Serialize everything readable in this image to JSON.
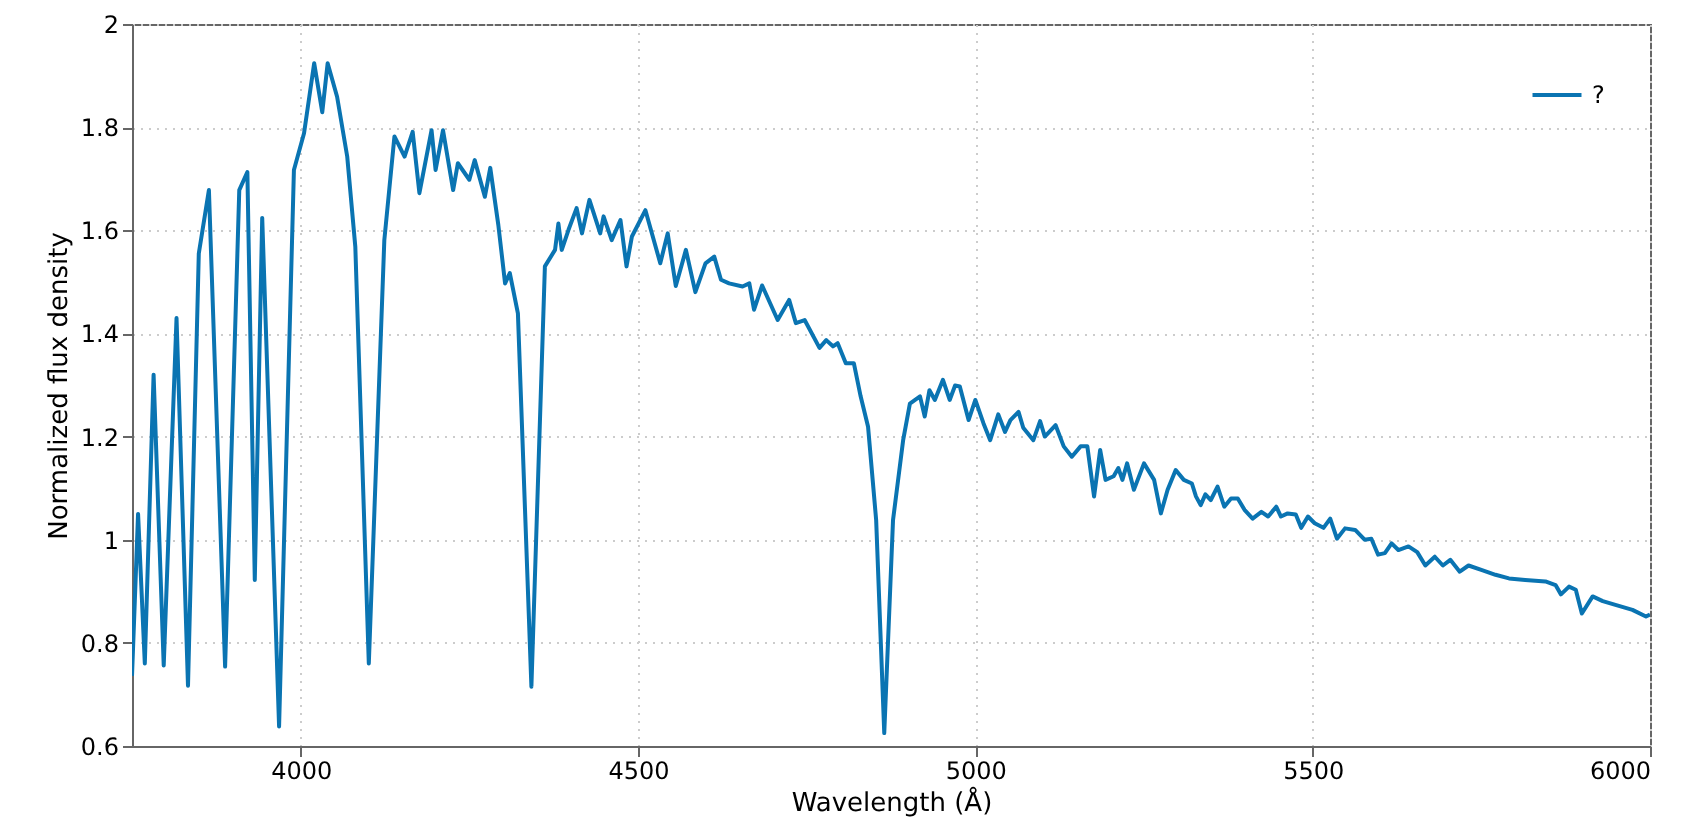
{
  "chart_data": {
    "type": "line",
    "xlabel": "Wavelength (Å)",
    "ylabel": "Normalized flux density",
    "xlim": [
      3750,
      6000
    ],
    "ylim": [
      0.6,
      2
    ],
    "xticks": [
      4000,
      4500,
      5000,
      5500,
      6000
    ],
    "yticks": [
      0.6,
      0.8,
      1,
      1.2,
      1.4,
      1.6,
      1.8,
      2
    ],
    "grid": true,
    "legend": "top right",
    "marker": "none",
    "line_style": "solid",
    "x": [
      3750,
      3759,
      3769,
      3782,
      3797,
      3816,
      3833,
      3849,
      3864,
      3888,
      3909,
      3921,
      3932,
      3943,
      3968,
      3990,
      4005,
      4020,
      4032,
      4040,
      4054,
      4069,
      4081,
      4101,
      4124,
      4139,
      4154,
      4166,
      4176,
      4194,
      4200,
      4211,
      4226,
      4233,
      4250,
      4258,
      4273,
      4281,
      4293,
      4303,
      4310,
      4322,
      4342,
      4362,
      4377,
      4382,
      4387,
      4397,
      4409,
      4417,
      4428,
      4444,
      4449,
      4461,
      4474,
      4483,
      4491,
      4511,
      4533,
      4544,
      4556,
      4571,
      4585,
      4600,
      4613,
      4623,
      4635,
      4655,
      4665,
      4672,
      4684,
      4707,
      4724,
      4734,
      4747,
      4769,
      4779,
      4789,
      4796,
      4808,
      4820,
      4830,
      4841,
      4853,
      4865,
      4878,
      4893,
      4903,
      4918,
      4925,
      4932,
      4940,
      4952,
      4962,
      4970,
      4977,
      4990,
      5000,
      5012,
      5022,
      5034,
      5044,
      5052,
      5064,
      5071,
      5086,
      5096,
      5103,
      5119,
      5131,
      5143,
      5156,
      5166,
      5176,
      5185,
      5193,
      5205,
      5212,
      5218,
      5225,
      5235,
      5250,
      5265,
      5275,
      5285,
      5297,
      5309,
      5321,
      5327,
      5334,
      5341,
      5349,
      5359,
      5369,
      5379,
      5389,
      5399,
      5411,
      5424,
      5434,
      5446,
      5453,
      5463,
      5475,
      5483,
      5493,
      5503,
      5516,
      5526,
      5536,
      5548,
      5563,
      5577,
      5587,
      5597,
      5607,
      5617,
      5627,
      5642,
      5655,
      5667,
      5681,
      5693,
      5704,
      5718,
      5731,
      5751,
      5771,
      5791,
      5815,
      5845,
      5860,
      5868,
      5880,
      5890,
      5899,
      5915,
      5930,
      5950,
      5974,
      5994,
      6000
    ],
    "series": [
      {
        "name": "?",
        "color": "#0a74b2",
        "values": [
          0.736,
          1.05,
          0.76,
          1.32,
          0.756,
          1.43,
          0.717,
          1.555,
          1.678,
          0.754,
          1.678,
          1.713,
          0.922,
          1.624,
          0.638,
          1.717,
          1.788,
          1.924,
          1.829,
          1.924,
          1.859,
          1.743,
          1.568,
          0.76,
          1.581,
          1.782,
          1.743,
          1.791,
          1.672,
          1.794,
          1.717,
          1.794,
          1.678,
          1.73,
          1.698,
          1.736,
          1.665,
          1.721,
          1.61,
          1.497,
          1.517,
          1.439,
          0.715,
          1.53,
          1.562,
          1.613,
          1.562,
          1.601,
          1.643,
          1.594,
          1.659,
          1.594,
          1.627,
          1.581,
          1.62,
          1.53,
          1.588,
          1.639,
          1.536,
          1.594,
          1.492,
          1.562,
          1.48,
          1.536,
          1.549,
          1.504,
          1.497,
          1.491,
          1.497,
          1.446,
          1.493,
          1.426,
          1.465,
          1.42,
          1.426,
          1.372,
          1.387,
          1.375,
          1.381,
          1.342,
          1.342,
          1.278,
          1.219,
          1.038,
          0.625,
          1.038,
          1.193,
          1.264,
          1.278,
          1.239,
          1.29,
          1.271,
          1.31,
          1.271,
          1.299,
          1.297,
          1.232,
          1.271,
          1.226,
          1.193,
          1.243,
          1.209,
          1.232,
          1.248,
          1.217,
          1.193,
          1.23,
          1.2,
          1.222,
          1.181,
          1.161,
          1.181,
          1.181,
          1.084,
          1.174,
          1.116,
          1.123,
          1.139,
          1.116,
          1.148,
          1.097,
          1.148,
          1.116,
          1.051,
          1.097,
          1.135,
          1.116,
          1.109,
          1.084,
          1.067,
          1.088,
          1.077,
          1.103,
          1.064,
          1.08,
          1.08,
          1.058,
          1.041,
          1.054,
          1.045,
          1.064,
          1.045,
          1.051,
          1.049,
          1.023,
          1.045,
          1.032,
          1.023,
          1.041,
          1.002,
          1.022,
          1.019,
          1.0,
          1.002,
          0.971,
          0.974,
          0.993,
          0.98,
          0.987,
          0.976,
          0.95,
          0.967,
          0.95,
          0.961,
          0.938,
          0.95,
          0.941,
          0.932,
          0.925,
          0.922,
          0.919,
          0.912,
          0.894,
          0.909,
          0.903,
          0.857,
          0.89,
          0.881,
          0.873,
          0.864,
          0.851,
          0.855
        ]
      }
    ]
  }
}
